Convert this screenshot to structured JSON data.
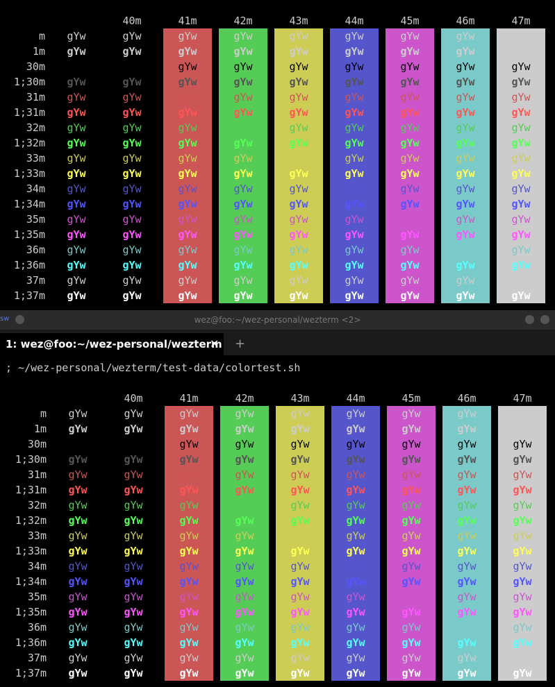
{
  "window": {
    "title": "wez@foo:~/wez-personal/wezterm <2>",
    "app_icon_text": "sw",
    "icon_names": [
      "app-icon",
      "minimize-icon",
      "maximize-icon",
      "window-menu-icon"
    ]
  },
  "tab_bar": {
    "tabs": [
      {
        "label": "1: wez@foo:~/wez-personal/wezterm",
        "close": "✕"
      }
    ],
    "new_tab": "+"
  },
  "prompt_line": "; ~/wez-personal/wezterm/test-data/colortest.sh",
  "colortest": {
    "sample": "gYw",
    "bg_headers": [
      "40m",
      "41m",
      "42m",
      "43m",
      "44m",
      "45m",
      "46m",
      "47m"
    ],
    "row_labels": [
      "m",
      "1m",
      "30m",
      "1;30m",
      "31m",
      "1;31m",
      "32m",
      "1;32m",
      "33m",
      "1;33m",
      "34m",
      "1;34m",
      "35m",
      "1;35m",
      "36m",
      "1;36m",
      "37m",
      "1;37m"
    ],
    "bg_colors": [
      "#cc5555",
      "#55cc55",
      "#cdcd55",
      "#5555cc",
      "#cc55cc",
      "#7acaca",
      "#cccccc"
    ],
    "top_pane_fg": [
      "#cccccc",
      "#cccccc",
      "#000000",
      "#555555",
      "#cc5555",
      "#ff5555",
      "#55cc55",
      "#55ff55",
      "#cdcd55",
      "#ffff55",
      "#5555cc",
      "#5555ff",
      "#cc55cc",
      "#ff55ff",
      "#7acaca",
      "#55ffff",
      "#cccccc",
      "#ffffff"
    ],
    "bottom_pane_fg": [
      "#cccccc",
      "#cccccc",
      "#000000",
      "#555555",
      "#cc5555",
      "#ff5555",
      "#55cc55",
      "#55ff55",
      "#cdcd55",
      "#ffff55",
      "#5555cc",
      "#5555ff",
      "#cc55cc",
      "#ff55ff",
      "#7acaca",
      "#55ffff",
      "#cccccc",
      "#ffffff"
    ]
  }
}
